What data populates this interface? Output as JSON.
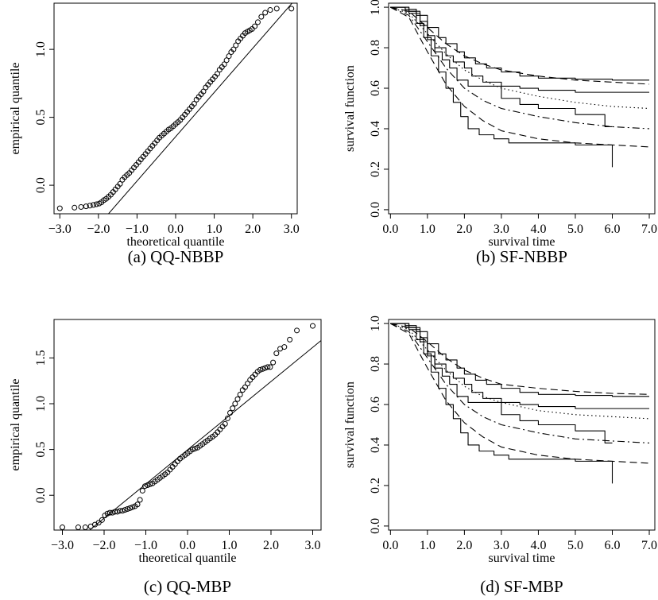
{
  "chart_data": [
    {
      "type": "scatter",
      "caption": "(a) QQ-NBBP",
      "xlabel": "theoretical quantile",
      "ylabel": "empirical quantile",
      "xlim": [
        -3.15,
        3.15
      ],
      "ylim": [
        -0.21,
        1.34
      ],
      "xticks": [
        -3.0,
        -2.0,
        -1.0,
        0.0,
        1.0,
        2.0,
        3.0
      ],
      "xtick_labels": [
        "−3.0",
        "−2.0",
        "−1.0",
        "0.0",
        "1.0",
        "2.0",
        "3.0"
      ],
      "yticks": [
        0.0,
        0.5,
        1.0
      ],
      "ytick_labels": [
        "0.0",
        "0.5",
        "1.0"
      ],
      "reference_line": {
        "x": [
          -2.2,
          3.2
        ],
        "y": [
          -0.36,
          1.4
        ]
      },
      "points": {
        "x": [
          -3.0,
          -2.62,
          -2.45,
          -2.32,
          -2.22,
          -2.13,
          -2.05,
          -1.98,
          -1.92,
          -1.86,
          -1.8,
          -1.74,
          -1.68,
          -1.62,
          -1.56,
          -1.5,
          -1.44,
          -1.38,
          -1.32,
          -1.26,
          -1.2,
          -1.14,
          -1.08,
          -1.02,
          -0.96,
          -0.9,
          -0.84,
          -0.78,
          -0.72,
          -0.66,
          -0.6,
          -0.54,
          -0.48,
          -0.42,
          -0.36,
          -0.3,
          -0.24,
          -0.18,
          -0.12,
          -0.06,
          0.0,
          0.06,
          0.12,
          0.18,
          0.24,
          0.3,
          0.36,
          0.42,
          0.48,
          0.54,
          0.6,
          0.66,
          0.72,
          0.78,
          0.84,
          0.9,
          0.96,
          1.02,
          1.08,
          1.14,
          1.2,
          1.26,
          1.32,
          1.38,
          1.44,
          1.5,
          1.56,
          1.62,
          1.68,
          1.74,
          1.8,
          1.86,
          1.92,
          1.98,
          2.05,
          2.13,
          2.22,
          2.32,
          2.45,
          2.62,
          3.0
        ],
        "y": [
          -0.17,
          -0.165,
          -0.16,
          -0.155,
          -0.15,
          -0.145,
          -0.14,
          -0.135,
          -0.125,
          -0.11,
          -0.1,
          -0.085,
          -0.07,
          -0.05,
          -0.03,
          -0.01,
          0.01,
          0.04,
          0.06,
          0.075,
          0.09,
          0.11,
          0.13,
          0.15,
          0.17,
          0.19,
          0.21,
          0.23,
          0.25,
          0.27,
          0.29,
          0.31,
          0.33,
          0.35,
          0.365,
          0.38,
          0.395,
          0.41,
          0.42,
          0.435,
          0.45,
          0.465,
          0.48,
          0.5,
          0.52,
          0.54,
          0.56,
          0.58,
          0.6,
          0.63,
          0.65,
          0.67,
          0.69,
          0.72,
          0.74,
          0.76,
          0.78,
          0.8,
          0.82,
          0.85,
          0.87,
          0.89,
          0.92,
          0.95,
          0.98,
          1.0,
          1.03,
          1.06,
          1.08,
          1.1,
          1.12,
          1.13,
          1.14,
          1.15,
          1.17,
          1.2,
          1.24,
          1.27,
          1.29,
          1.3,
          1.3
        ]
      }
    },
    {
      "type": "line",
      "caption": "(b) SF-NBBP",
      "xlabel": "survival time",
      "ylabel": "survival function",
      "xlim": [
        -0.05,
        7.15
      ],
      "ylim": [
        -0.02,
        1.02
      ],
      "xticks": [
        0,
        1,
        2,
        3,
        4,
        5,
        6,
        7
      ],
      "xtick_labels": [
        "0.0",
        "1.0",
        "2.0",
        "3.0",
        "4.0",
        "5.0",
        "6.0",
        "7.0"
      ],
      "yticks": [
        0.0,
        0.2,
        0.4,
        0.6,
        0.8,
        1.0
      ],
      "ytick_labels": [
        "0.0",
        "0.2",
        "0.4",
        "0.6",
        "0.8",
        "1.0"
      ],
      "series": [
        {
          "style": "solid",
          "kind": "step",
          "x": [
            0,
            0.4,
            0.7,
            1.0,
            1.3,
            1.5,
            1.8,
            2.0,
            2.3,
            2.6,
            3.0,
            3.5,
            4.0,
            5.0,
            6.0,
            7.0
          ],
          "y": [
            1.0,
            0.99,
            0.96,
            0.9,
            0.85,
            0.82,
            0.78,
            0.75,
            0.72,
            0.7,
            0.68,
            0.66,
            0.65,
            0.645,
            0.64,
            0.64
          ]
        },
        {
          "style": "solid",
          "kind": "step",
          "x": [
            0,
            0.5,
            0.8,
            1.0,
            1.2,
            1.5,
            1.7,
            2.0,
            2.2,
            2.5,
            3.0,
            3.5,
            4.0,
            5.0,
            6.0,
            7.0
          ],
          "y": [
            1.0,
            0.98,
            0.93,
            0.86,
            0.8,
            0.76,
            0.73,
            0.7,
            0.66,
            0.63,
            0.61,
            0.6,
            0.59,
            0.58,
            0.58,
            0.58
          ]
        },
        {
          "style": "solid",
          "kind": "step",
          "x": [
            0,
            0.5,
            0.8,
            1.0,
            1.2,
            1.4,
            1.6,
            1.8,
            2.1,
            2.5,
            3.0,
            3.5,
            4.0,
            5.0,
            5.8,
            6.0
          ],
          "y": [
            1.0,
            0.97,
            0.91,
            0.84,
            0.78,
            0.74,
            0.7,
            0.64,
            0.61,
            0.61,
            0.55,
            0.52,
            0.5,
            0.47,
            0.41,
            0.41
          ]
        },
        {
          "style": "solid",
          "kind": "step",
          "x": [
            0,
            0.4,
            0.7,
            0.9,
            1.1,
            1.3,
            1.5,
            1.7,
            1.9,
            2.1,
            2.4,
            2.8,
            3.2,
            4.0,
            5.0,
            6.0
          ],
          "y": [
            1.0,
            0.98,
            0.92,
            0.85,
            0.76,
            0.68,
            0.6,
            0.53,
            0.46,
            0.4,
            0.37,
            0.35,
            0.33,
            0.33,
            0.32,
            0.21
          ]
        },
        {
          "style": "dashed",
          "kind": "smooth",
          "x": [
            0,
            0.5,
            1.0,
            1.5,
            2.0,
            2.5,
            3.0,
            4.0,
            5.0,
            6.0,
            7.0
          ],
          "y": [
            1.0,
            0.98,
            0.9,
            0.82,
            0.76,
            0.72,
            0.69,
            0.66,
            0.64,
            0.63,
            0.62
          ]
        },
        {
          "style": "dotted",
          "kind": "smooth",
          "x": [
            0,
            0.5,
            1.0,
            1.5,
            2.0,
            2.5,
            3.0,
            4.0,
            5.0,
            6.0,
            7.0
          ],
          "y": [
            1.0,
            0.97,
            0.87,
            0.77,
            0.69,
            0.64,
            0.6,
            0.56,
            0.53,
            0.51,
            0.5
          ]
        },
        {
          "style": "dashdot",
          "kind": "smooth",
          "x": [
            0,
            0.5,
            1.0,
            1.5,
            2.0,
            2.5,
            3.0,
            4.0,
            5.0,
            6.0,
            7.0
          ],
          "y": [
            1.0,
            0.96,
            0.83,
            0.7,
            0.6,
            0.54,
            0.5,
            0.46,
            0.43,
            0.41,
            0.4
          ]
        },
        {
          "style": "dashed",
          "kind": "smooth",
          "x": [
            0,
            0.5,
            1.0,
            1.5,
            2.0,
            2.5,
            3.0,
            4.0,
            5.0,
            6.0,
            7.0
          ],
          "y": [
            1.0,
            0.95,
            0.78,
            0.62,
            0.51,
            0.44,
            0.39,
            0.35,
            0.33,
            0.32,
            0.31
          ]
        }
      ]
    },
    {
      "type": "scatter",
      "caption": "(c) QQ-MBP",
      "xlabel": "theoretical quantile",
      "ylabel": "empirical quantile",
      "xlim": [
        -3.2,
        3.2
      ],
      "ylim": [
        -0.38,
        1.92
      ],
      "xticks": [
        -3.0,
        -2.0,
        -1.0,
        0.0,
        1.0,
        2.0,
        3.0
      ],
      "xtick_labels": [
        "−3.0",
        "−2.0",
        "−1.0",
        "0.0",
        "1.0",
        "2.0",
        "3.0"
      ],
      "yticks": [
        0.0,
        0.5,
        1.0,
        1.5
      ],
      "ytick_labels": [
        "0.0",
        "0.5",
        "1.0",
        "1.5"
      ],
      "reference_line": {
        "x": [
          -2.4,
          3.2
        ],
        "y": [
          -0.4,
          1.69
        ]
      },
      "points": {
        "x": [
          -3.0,
          -2.62,
          -2.45,
          -2.32,
          -2.22,
          -2.13,
          -2.05,
          -1.98,
          -1.92,
          -1.86,
          -1.8,
          -1.74,
          -1.68,
          -1.62,
          -1.56,
          -1.5,
          -1.44,
          -1.38,
          -1.32,
          -1.26,
          -1.2,
          -1.14,
          -1.08,
          -1.02,
          -0.96,
          -0.9,
          -0.84,
          -0.78,
          -0.72,
          -0.66,
          -0.6,
          -0.54,
          -0.48,
          -0.42,
          -0.36,
          -0.3,
          -0.24,
          -0.18,
          -0.12,
          -0.06,
          0.0,
          0.06,
          0.12,
          0.18,
          0.24,
          0.3,
          0.36,
          0.42,
          0.48,
          0.54,
          0.6,
          0.66,
          0.72,
          0.78,
          0.84,
          0.9,
          0.96,
          1.02,
          1.08,
          1.14,
          1.2,
          1.26,
          1.32,
          1.38,
          1.44,
          1.5,
          1.56,
          1.62,
          1.68,
          1.74,
          1.8,
          1.86,
          1.92,
          1.98,
          2.05,
          2.13,
          2.22,
          2.32,
          2.45,
          2.62,
          3.0
        ],
        "y": [
          -0.35,
          -0.35,
          -0.35,
          -0.34,
          -0.32,
          -0.3,
          -0.27,
          -0.22,
          -0.2,
          -0.19,
          -0.19,
          -0.18,
          -0.18,
          -0.17,
          -0.17,
          -0.16,
          -0.15,
          -0.14,
          -0.13,
          -0.12,
          -0.1,
          -0.05,
          0.05,
          0.1,
          0.11,
          0.12,
          0.13,
          0.15,
          0.17,
          0.19,
          0.21,
          0.23,
          0.25,
          0.28,
          0.31,
          0.34,
          0.37,
          0.4,
          0.42,
          0.44,
          0.46,
          0.48,
          0.5,
          0.51,
          0.52,
          0.54,
          0.56,
          0.58,
          0.6,
          0.62,
          0.64,
          0.66,
          0.69,
          0.72,
          0.75,
          0.78,
          0.84,
          0.9,
          0.95,
          1.0,
          1.05,
          1.1,
          1.15,
          1.18,
          1.22,
          1.26,
          1.29,
          1.32,
          1.35,
          1.37,
          1.38,
          1.39,
          1.4,
          1.4,
          1.45,
          1.55,
          1.6,
          1.62,
          1.7,
          1.8,
          1.85
        ]
      }
    },
    {
      "type": "line",
      "caption": "(d) SF-MBP",
      "xlabel": "survival time",
      "ylabel": "survival function",
      "xlim": [
        -0.05,
        7.15
      ],
      "ylim": [
        -0.02,
        1.02
      ],
      "xticks": [
        0,
        1,
        2,
        3,
        4,
        5,
        6,
        7
      ],
      "xtick_labels": [
        "0.0",
        "1.0",
        "2.0",
        "3.0",
        "4.0",
        "5.0",
        "6.0",
        "7.0"
      ],
      "yticks": [
        0.0,
        0.2,
        0.4,
        0.6,
        0.8,
        1.0
      ],
      "ytick_labels": [
        "0.0",
        "0.2",
        "0.4",
        "0.6",
        "0.8",
        "1.0"
      ],
      "series": [
        {
          "style": "solid",
          "kind": "step",
          "x": [
            0,
            0.4,
            0.7,
            1.0,
            1.3,
            1.5,
            1.8,
            2.0,
            2.3,
            2.6,
            3.0,
            3.5,
            4.0,
            5.0,
            6.0,
            7.0
          ],
          "y": [
            1.0,
            0.99,
            0.96,
            0.9,
            0.85,
            0.82,
            0.78,
            0.75,
            0.72,
            0.7,
            0.68,
            0.66,
            0.65,
            0.645,
            0.64,
            0.64
          ]
        },
        {
          "style": "solid",
          "kind": "step",
          "x": [
            0,
            0.5,
            0.8,
            1.0,
            1.2,
            1.5,
            1.7,
            2.0,
            2.2,
            2.5,
            3.0,
            3.5,
            4.0,
            5.0,
            6.0,
            7.0
          ],
          "y": [
            1.0,
            0.98,
            0.93,
            0.86,
            0.8,
            0.76,
            0.73,
            0.7,
            0.66,
            0.63,
            0.61,
            0.6,
            0.59,
            0.58,
            0.58,
            0.58
          ]
        },
        {
          "style": "solid",
          "kind": "step",
          "x": [
            0,
            0.5,
            0.8,
            1.0,
            1.2,
            1.4,
            1.6,
            1.8,
            2.1,
            2.5,
            3.0,
            3.5,
            4.0,
            5.0,
            5.8,
            6.0
          ],
          "y": [
            1.0,
            0.97,
            0.91,
            0.84,
            0.78,
            0.74,
            0.7,
            0.64,
            0.61,
            0.61,
            0.55,
            0.52,
            0.5,
            0.47,
            0.41,
            0.41
          ]
        },
        {
          "style": "solid",
          "kind": "step",
          "x": [
            0,
            0.4,
            0.7,
            0.9,
            1.1,
            1.3,
            1.5,
            1.7,
            1.9,
            2.1,
            2.4,
            2.8,
            3.2,
            4.0,
            5.0,
            6.0
          ],
          "y": [
            1.0,
            0.98,
            0.92,
            0.85,
            0.76,
            0.68,
            0.6,
            0.53,
            0.46,
            0.4,
            0.37,
            0.35,
            0.33,
            0.33,
            0.32,
            0.21
          ]
        },
        {
          "style": "dashed",
          "kind": "smooth",
          "x": [
            0,
            0.5,
            1.0,
            1.5,
            2.0,
            2.5,
            3.0,
            4.0,
            5.0,
            6.0,
            7.0
          ],
          "y": [
            1.0,
            0.98,
            0.91,
            0.83,
            0.77,
            0.73,
            0.7,
            0.68,
            0.665,
            0.655,
            0.65
          ]
        },
        {
          "style": "dotted",
          "kind": "smooth",
          "x": [
            0,
            0.5,
            1.0,
            1.5,
            2.0,
            2.5,
            3.0,
            4.0,
            5.0,
            6.0,
            7.0
          ],
          "y": [
            1.0,
            0.97,
            0.87,
            0.77,
            0.69,
            0.64,
            0.61,
            0.57,
            0.55,
            0.54,
            0.53
          ]
        },
        {
          "style": "dashdot",
          "kind": "smooth",
          "x": [
            0,
            0.5,
            1.0,
            1.5,
            2.0,
            2.5,
            3.0,
            4.0,
            5.0,
            6.0,
            7.0
          ],
          "y": [
            1.0,
            0.96,
            0.83,
            0.7,
            0.6,
            0.54,
            0.5,
            0.46,
            0.43,
            0.42,
            0.41
          ]
        },
        {
          "style": "dashed",
          "kind": "smooth",
          "x": [
            0,
            0.5,
            1.0,
            1.5,
            2.0,
            2.5,
            3.0,
            4.0,
            5.0,
            6.0,
            7.0
          ],
          "y": [
            1.0,
            0.95,
            0.78,
            0.62,
            0.51,
            0.44,
            0.39,
            0.35,
            0.33,
            0.32,
            0.31
          ]
        }
      ]
    }
  ]
}
